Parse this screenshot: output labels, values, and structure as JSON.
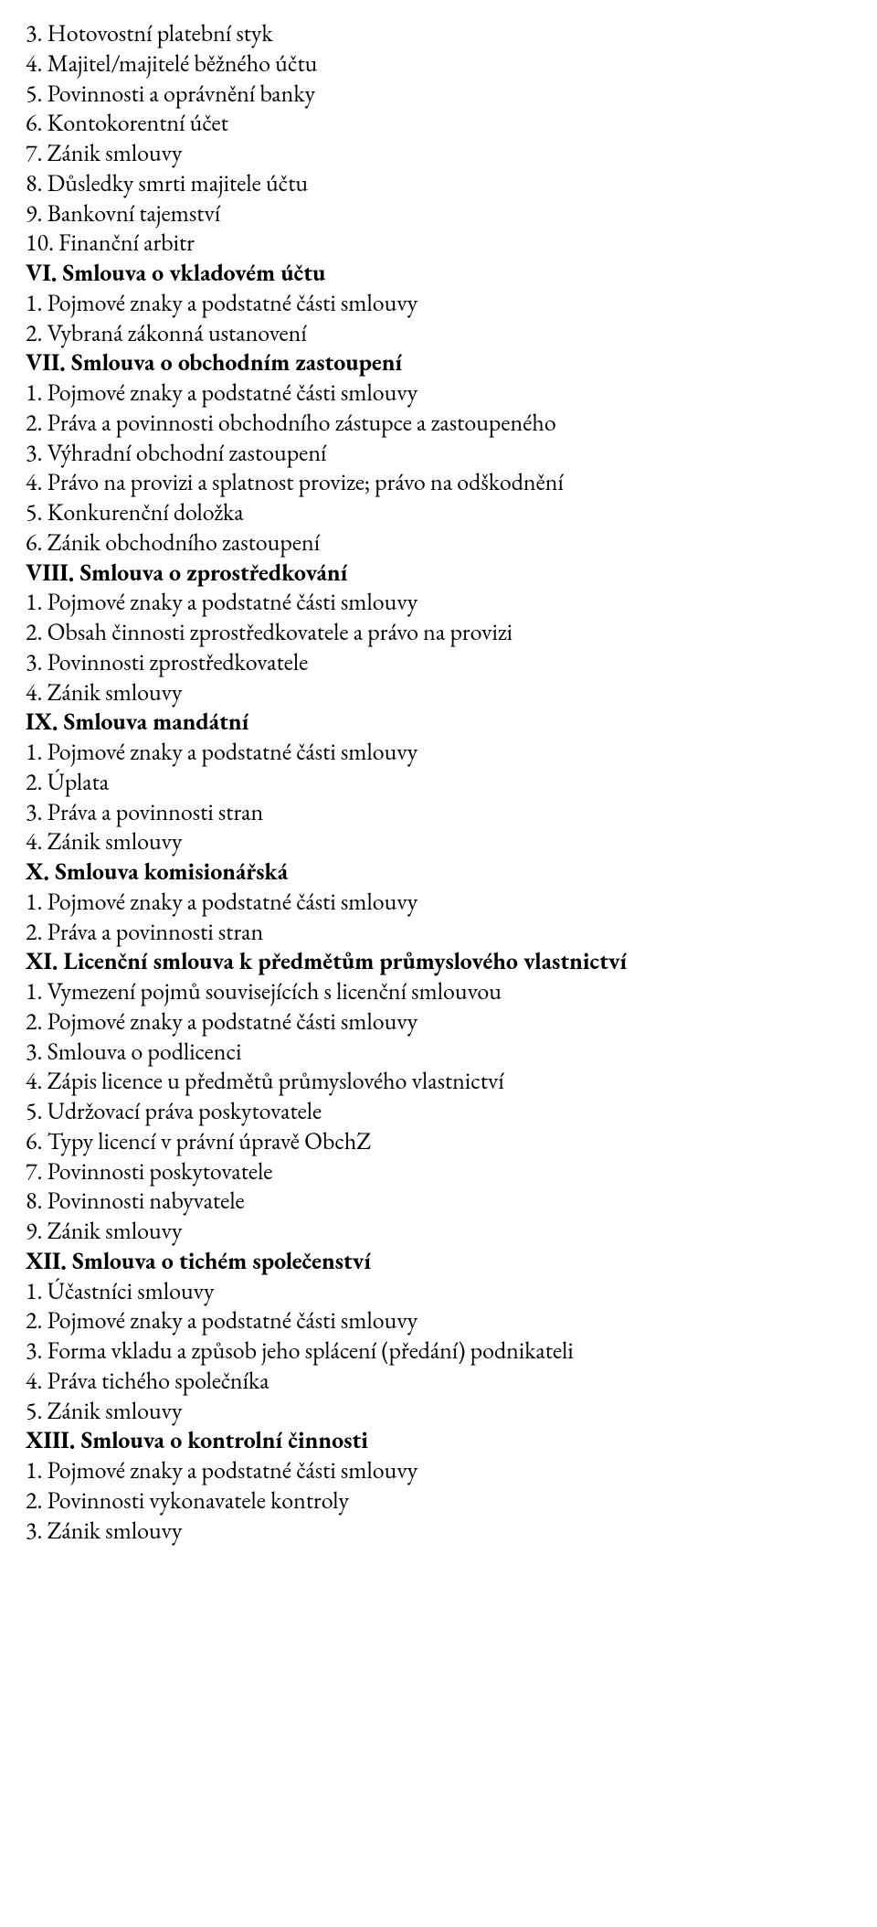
{
  "lines": [
    {
      "text": "3. Hotovostní platební styk",
      "bold": false
    },
    {
      "text": "4. Majitel/majitelé běžného účtu",
      "bold": false
    },
    {
      "text": "5. Povinnosti a oprávnění banky",
      "bold": false
    },
    {
      "text": "6. Kontokorentní účet",
      "bold": false
    },
    {
      "text": "7. Zánik smlouvy",
      "bold": false
    },
    {
      "text": "8. Důsledky smrti majitele účtu",
      "bold": false
    },
    {
      "text": "9. Bankovní tajemství",
      "bold": false
    },
    {
      "text": "10. Finanční arbitr",
      "bold": false
    },
    {
      "text": "VI. Smlouva o vkladovém účtu",
      "bold": true
    },
    {
      "text": "1. Pojmové znaky a podstatné části smlouvy",
      "bold": false
    },
    {
      "text": "2. Vybraná zákonná ustanovení",
      "bold": false
    },
    {
      "text": "VII. Smlouva o obchodním zastoupení",
      "bold": true
    },
    {
      "text": "1. Pojmové znaky a podstatné části smlouvy",
      "bold": false
    },
    {
      "text": "2. Práva a povinnosti obchodního zástupce a zastoupeného",
      "bold": false
    },
    {
      "text": "3. Výhradní obchodní zastoupení",
      "bold": false
    },
    {
      "text": "4. Právo na provizi a splatnost provize; právo na odškodnění",
      "bold": false
    },
    {
      "text": "5. Konkurenční doložka",
      "bold": false
    },
    {
      "text": "6. Zánik obchodního zastoupení",
      "bold": false
    },
    {
      "text": "VIII. Smlouva o zprostředkování",
      "bold": true
    },
    {
      "text": "1. Pojmové znaky a podstatné části smlouvy",
      "bold": false
    },
    {
      "text": "2. Obsah činnosti zprostředkovatele a právo na provizi",
      "bold": false
    },
    {
      "text": "3. Povinnosti zprostředkovatele",
      "bold": false
    },
    {
      "text": "4. Zánik smlouvy",
      "bold": false
    },
    {
      "text": "IX. Smlouva mandátní",
      "bold": true
    },
    {
      "text": "1. Pojmové znaky a podstatné části smlouvy",
      "bold": false
    },
    {
      "text": "2. Úplata",
      "bold": false
    },
    {
      "text": "3. Práva a povinnosti stran",
      "bold": false
    },
    {
      "text": "4. Zánik smlouvy",
      "bold": false
    },
    {
      "text": "X. Smlouva komisionářská",
      "bold": true
    },
    {
      "text": "1. Pojmové znaky a podstatné části smlouvy",
      "bold": false
    },
    {
      "text": "2. Práva a povinnosti stran",
      "bold": false
    },
    {
      "text": "XI. Licenční smlouva k předmětům průmyslového vlastnictví",
      "bold": true
    },
    {
      "text": "1. Vymezení pojmů souvisejících s licenční smlouvou",
      "bold": false
    },
    {
      "text": "2. Pojmové znaky a podstatné části smlouvy",
      "bold": false
    },
    {
      "text": "3. Smlouva o podlicenci",
      "bold": false
    },
    {
      "text": "4. Zápis licence u předmětů průmyslového vlastnictví",
      "bold": false
    },
    {
      "text": "5. Udržovací práva poskytovatele",
      "bold": false
    },
    {
      "text": "6. Typy licencí v právní úpravě ObchZ",
      "bold": false
    },
    {
      "text": "7. Povinnosti poskytovatele",
      "bold": false
    },
    {
      "text": "8. Povinnosti nabyvatele",
      "bold": false
    },
    {
      "text": "9. Zánik smlouvy",
      "bold": false
    },
    {
      "text": "XII. Smlouva o tichém společenství",
      "bold": true
    },
    {
      "text": "1. Účastníci smlouvy",
      "bold": false
    },
    {
      "text": "2. Pojmové znaky a podstatné části smlouvy",
      "bold": false
    },
    {
      "text": "3. Forma vkladu a způsob jeho splácení (předání) podnikateli",
      "bold": false
    },
    {
      "text": "4. Práva tichého společníka",
      "bold": false
    },
    {
      "text": "5. Zánik smlouvy",
      "bold": false
    },
    {
      "text": "XIII. Smlouva o kontrolní činnosti",
      "bold": true
    },
    {
      "text": "1. Pojmové znaky a podstatné části smlouvy",
      "bold": false
    },
    {
      "text": "2. Povinnosti vykonavatele kontroly",
      "bold": false
    },
    {
      "text": "3. Zánik smlouvy",
      "bold": false
    }
  ]
}
